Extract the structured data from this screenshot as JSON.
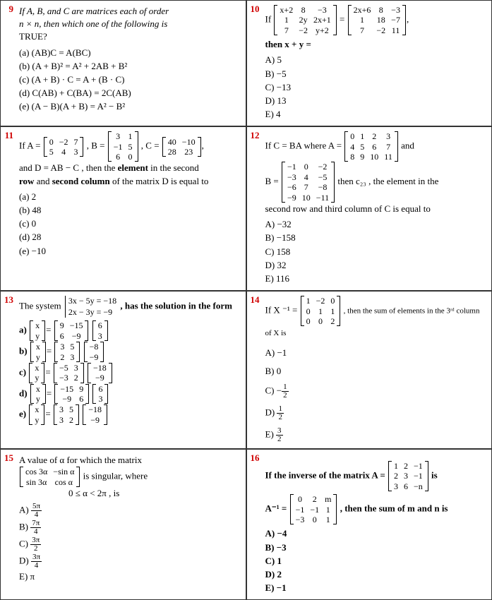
{
  "q9": {
    "num": "9",
    "stem1": "If A, B, and C are matrices each of order",
    "stem2": "n × n, then which one of the following is",
    "stem3": "TRUE?",
    "a": "(a)  (AB)C = A(BC)",
    "b": "(b)  (A + B)² = A² + 2AB + B²",
    "c": "(c)  (A + B) · C = A + (B · C)",
    "d": "(d)  C(AB) + C(BA) = 2C(AB)",
    "e": "(e)  (A − B)(A + B) = A² − B²"
  },
  "q10": {
    "num": "10",
    "if": "If",
    "m1": [
      [
        "x+2",
        "8",
        "−3"
      ],
      [
        "1",
        "2y",
        "2x+1"
      ],
      [
        "7",
        "−2",
        "y+2"
      ]
    ],
    "eq": "=",
    "m2": [
      [
        "2x+6",
        "8",
        "−3"
      ],
      [
        "1",
        "18",
        "−7"
      ],
      [
        "7",
        "−2",
        "11"
      ]
    ],
    "comma": ",",
    "then": "then  x + y  =",
    "A": "A)    5",
    "B": "B)   −5",
    "C": "C)   −13",
    "D": "D)    13",
    "E": "E)    4"
  },
  "q11": {
    "num": "11",
    "if": "If  A =",
    "mA": [
      [
        "0",
        "−2",
        "7"
      ],
      [
        "5",
        "4",
        "3"
      ]
    ],
    "Beq": ",  B =",
    "mB": [
      [
        "3",
        "1"
      ],
      [
        "−1",
        "5"
      ],
      [
        "6",
        "0"
      ]
    ],
    "Ceq": ",  C =",
    "mC": [
      [
        "40",
        "−10"
      ],
      [
        "28",
        "23"
      ]
    ],
    "comma": ",",
    "line2a": "and  D = AB − C ,  then the ",
    "line2b": "element",
    "line2c": "  in the second",
    "line3a": "row",
    "line3b": " and ",
    "line3c": "second column",
    "line3d": " of the matrix  D  is equal to",
    "a": "(a) 2",
    "b": "(b) 48",
    "c": "(c) 0",
    "d": "(d) 28",
    "e": "(e) −10"
  },
  "q12": {
    "num": "12",
    "p1": "If C = BA where  A =",
    "mA": [
      [
        "0",
        "1",
        "2",
        "3"
      ],
      [
        "4",
        "5",
        "6",
        "7"
      ],
      [
        "8",
        "9",
        "10",
        "11"
      ]
    ],
    "and": "  and",
    "Beq": "B =",
    "mB": [
      [
        "−1",
        "0",
        "−2"
      ],
      [
        "−3",
        "4",
        "−5"
      ],
      [
        "−6",
        "7",
        "−8"
      ],
      [
        "−9",
        "10",
        "−11"
      ]
    ],
    "p2": "then c₂₃ , the element in the",
    "p3": "second row and third column of C is equal to",
    "A": "A)   −32",
    "B": "B)   −158",
    "C": "C)    158",
    "D": "D)    32",
    "E": "E)    116"
  },
  "q13": {
    "num": "13",
    "stem1": "The system",
    "sys1": "3x − 5y = −18",
    "sys2": "2x − 3y = −9",
    "stem2": ", has the solution in the form",
    "xy": [
      [
        "x"
      ],
      [
        "y"
      ]
    ],
    "eq": "=",
    "a_m1": [
      [
        "9",
        "−15"
      ],
      [
        "6",
        "−9"
      ]
    ],
    "a_m2": [
      [
        "6"
      ],
      [
        "3"
      ]
    ],
    "b_m1": [
      [
        "3",
        "5"
      ],
      [
        "2",
        "3"
      ]
    ],
    "b_m2": [
      [
        "−8"
      ],
      [
        "−9"
      ]
    ],
    "c_m1": [
      [
        "−5",
        "3"
      ],
      [
        "−3",
        "2"
      ]
    ],
    "c_m2": [
      [
        "−18"
      ],
      [
        "−9"
      ]
    ],
    "d_m1": [
      [
        "−15",
        "9"
      ],
      [
        "−9",
        "6"
      ]
    ],
    "d_m2": [
      [
        "6"
      ],
      [
        "3"
      ]
    ],
    "e_m1": [
      [
        "3",
        "5"
      ],
      [
        "3",
        "2"
      ]
    ],
    "e_m2": [
      [
        "−18"
      ],
      [
        "−9"
      ]
    ],
    "la": "a)",
    "lb": "b)",
    "lc": "c)",
    "ld": "d)",
    "le": "e)"
  },
  "q14": {
    "num": "14",
    "p1": "If  X ⁻¹ =",
    "mX": [
      [
        "1",
        "−2",
        "0"
      ],
      [
        "0",
        "1",
        "1"
      ],
      [
        "0",
        "0",
        "2"
      ]
    ],
    "p2": ",  then the sum of elements in the 3ʳᵈ  column of  X  is",
    "A": "A)  −1",
    "B": "B)    0",
    "Clab": "C)  ",
    "Cfrac_n": "1",
    "Cfrac_d": "2",
    "Cneg": "−",
    "Dlab": "D)  ",
    "Dfrac_n": "1",
    "Dfrac_d": "2",
    "Elab": "E)  ",
    "Efrac_n": "3",
    "Efrac_d": "2"
  },
  "q15": {
    "num": "15",
    "l1": "A value of  α  for which the matrix",
    "m": [
      [
        "cos 3α",
        "−sin α"
      ],
      [
        "sin 3α",
        "cos α"
      ]
    ],
    "l2": "  is singular,  where",
    "l3": "0 ≤ α < 2π ,  is",
    "Alab": "A)  ",
    "An": "5π",
    "Ad": "4",
    "Blab": "B)  ",
    "Bn": "7π",
    "Bd": "4",
    "Clab": "C)  ",
    "Cn": "3π",
    "Cd": "2",
    "Dlab": "D)  ",
    "Dn": "3π",
    "Dd": "4",
    "Elab": "E)  π"
  },
  "q16": {
    "num": "16",
    "p1": "If the inverse of the matrix  A  =",
    "mA": [
      [
        "1",
        "2",
        "−1"
      ],
      [
        "2",
        "3",
        "−1"
      ],
      [
        "3",
        "6",
        "−n"
      ]
    ],
    "is": "  is",
    "p2": "A⁻¹ =",
    "mAi": [
      [
        "0",
        "2",
        "m"
      ],
      [
        "−1",
        "−1",
        "1"
      ],
      [
        "−3",
        "0",
        "1"
      ]
    ],
    "p3": ", then the sum of m and n is",
    "A": "A)  −4",
    "B": "B)  −3",
    "C": "C)   1",
    "D": "D)   2",
    "E": "E)  −1"
  }
}
